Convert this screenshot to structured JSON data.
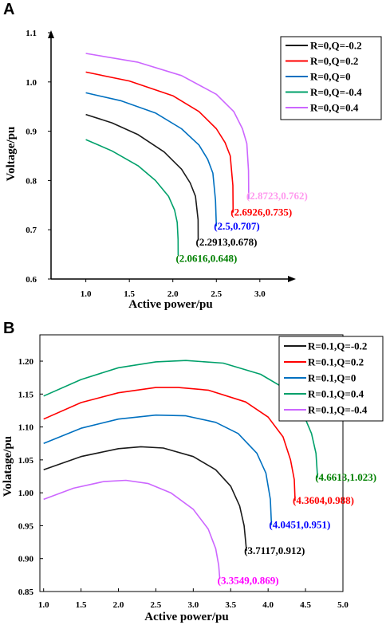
{
  "chart_data": [
    {
      "panel": "A",
      "type": "line",
      "xlabel": "Active power/pu",
      "ylabel": "Voltage/pu",
      "xlim": [
        0.6,
        3.35
      ],
      "ylim": [
        0.6,
        1.1
      ],
      "xticks": [
        "1.0",
        "1.5",
        "2.0",
        "2.5",
        "3.0"
      ],
      "yticks": [
        "0.6",
        "0.7",
        "0.8",
        "0.9",
        "1.0",
        "1.1"
      ],
      "legend_position": "top-right",
      "series": [
        {
          "name": "R=0,Q=-0.2",
          "color": "#1a1a1a",
          "x": [
            1.0,
            1.3,
            1.6,
            1.9,
            2.1,
            2.2,
            2.26,
            2.29,
            2.2913
          ],
          "y": [
            0.934,
            0.917,
            0.893,
            0.858,
            0.823,
            0.795,
            0.768,
            0.72,
            0.678
          ],
          "end_label": "(2.2913,0.678)",
          "end_label_color": "#000000"
        },
        {
          "name": "R=0,Q=0.2",
          "color": "#ff0000",
          "x": [
            1.0,
            1.5,
            2.0,
            2.3,
            2.5,
            2.6,
            2.66,
            2.69,
            2.6926
          ],
          "y": [
            1.02,
            1.002,
            0.972,
            0.94,
            0.905,
            0.877,
            0.85,
            0.79,
            0.735
          ],
          "end_label": "(2.6926,0.735)",
          "end_label_color": "#ff0000"
        },
        {
          "name": "R=0,Q=0",
          "color": "#0070c0",
          "x": [
            1.0,
            1.4,
            1.8,
            2.1,
            2.3,
            2.4,
            2.46,
            2.49,
            2.5
          ],
          "y": [
            0.978,
            0.962,
            0.937,
            0.905,
            0.872,
            0.843,
            0.815,
            0.76,
            0.707
          ],
          "end_label": "(2.5,0.707)",
          "end_label_color": "#0000ff"
        },
        {
          "name": "R=0,Q=-0.4",
          "color": "#00a06a",
          "x": [
            1.0,
            1.3,
            1.6,
            1.8,
            1.95,
            2.02,
            2.05,
            2.06,
            2.0616
          ],
          "y": [
            0.883,
            0.86,
            0.83,
            0.8,
            0.768,
            0.74,
            0.715,
            0.68,
            0.648
          ],
          "end_label": "(2.0616,0.648)",
          "end_label_color": "#008000"
        },
        {
          "name": "R=0,Q=0.4",
          "color": "#cc66ff",
          "x": [
            1.0,
            1.6,
            2.1,
            2.5,
            2.7,
            2.8,
            2.85,
            2.87,
            2.8723
          ],
          "y": [
            1.058,
            1.04,
            1.013,
            0.975,
            0.94,
            0.905,
            0.875,
            0.82,
            0.762
          ],
          "end_label": "(2.8723,0.762)",
          "end_label_color": "#ff99ee"
        }
      ]
    },
    {
      "panel": "B",
      "type": "line",
      "xlabel": "Active power/pu",
      "ylabel": "Volatage/pu",
      "xlim": [
        0.95,
        5.0
      ],
      "ylim": [
        0.85,
        1.24
      ],
      "xticks": [
        "1.0",
        "1.5",
        "2.0",
        "2.5",
        "3.0",
        "3.5",
        "4.0",
        "4.5",
        "5.0"
      ],
      "yticks": [
        "0.85",
        "0.90",
        "0.95",
        "1.00",
        "1.05",
        "1.10",
        "1.15",
        "1.20"
      ],
      "legend_position": "top-right",
      "series": [
        {
          "name": "R=0.1,Q=-0.2",
          "color": "#1a1a1a",
          "x": [
            1.0,
            1.5,
            2.0,
            2.3,
            2.6,
            3.0,
            3.3,
            3.5,
            3.62,
            3.68,
            3.7117
          ],
          "y": [
            1.035,
            1.055,
            1.067,
            1.07,
            1.068,
            1.055,
            1.035,
            1.01,
            0.98,
            0.95,
            0.912
          ],
          "end_label": "(3.7117,0.912)",
          "end_label_color": "#000000"
        },
        {
          "name": "R=0.1,Q=0.2",
          "color": "#ff0000",
          "x": [
            1.0,
            1.5,
            2.0,
            2.5,
            2.8,
            3.2,
            3.7,
            4.0,
            4.2,
            4.3,
            4.35,
            4.3604
          ],
          "y": [
            1.112,
            1.137,
            1.152,
            1.16,
            1.16,
            1.156,
            1.138,
            1.115,
            1.085,
            1.05,
            1.02,
            0.988
          ],
          "end_label": "(4.3604,0.988)",
          "end_label_color": "#ff0000"
        },
        {
          "name": "R=0.1,Q=0",
          "color": "#0070c0",
          "x": [
            1.0,
            1.5,
            2.0,
            2.5,
            2.9,
            3.3,
            3.6,
            3.85,
            3.97,
            4.03,
            4.0451
          ],
          "y": [
            1.075,
            1.098,
            1.112,
            1.118,
            1.117,
            1.107,
            1.09,
            1.06,
            1.03,
            0.99,
            0.951
          ],
          "end_label": "(4.0451,0.951)",
          "end_label_color": "#0000ff"
        },
        {
          "name": "R=0.1,Q=0.4",
          "color": "#00a06a",
          "x": [
            1.0,
            1.5,
            2.0,
            2.5,
            2.9,
            3.4,
            3.9,
            4.2,
            4.45,
            4.58,
            4.64,
            4.6613
          ],
          "y": [
            1.147,
            1.172,
            1.19,
            1.199,
            1.201,
            1.197,
            1.18,
            1.16,
            1.125,
            1.09,
            1.06,
            1.023
          ],
          "end_label": "(4.6613,1.023)",
          "end_label_color": "#008000"
        },
        {
          "name": "R=0.1,Q=-0.4",
          "color": "#cc66ff",
          "x": [
            1.0,
            1.4,
            1.8,
            2.1,
            2.4,
            2.7,
            3.0,
            3.2,
            3.3,
            3.34,
            3.3549
          ],
          "y": [
            0.99,
            1.007,
            1.017,
            1.019,
            1.014,
            1.0,
            0.975,
            0.945,
            0.915,
            0.89,
            0.869
          ],
          "end_label": "(3.3549,0.869)",
          "end_label_color": "#ff00ff"
        }
      ]
    }
  ],
  "panels": {
    "a": {
      "letter": "A"
    },
    "b": {
      "letter": "B"
    }
  }
}
